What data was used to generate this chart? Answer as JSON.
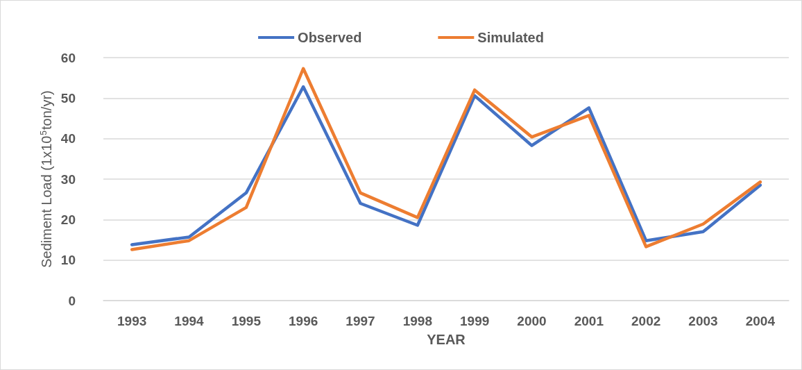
{
  "chart_data": {
    "type": "line",
    "xlabel": "YEAR",
    "ylabel": "Sediment Load (1x10$^{5}$ton/yr)",
    "categories": [
      "1993",
      "1994",
      "1995",
      "1996",
      "1997",
      "1998",
      "1999",
      "2000",
      "2001",
      "2002",
      "2003",
      "2004"
    ],
    "series": [
      {
        "name": "Observed",
        "color": "#4472c4",
        "values": [
          13.8,
          15.7,
          26.6,
          52.8,
          24.0,
          18.6,
          50.6,
          38.3,
          47.6,
          14.8,
          17.0,
          28.5
        ]
      },
      {
        "name": "Simulated",
        "color": "#ed7d31",
        "values": [
          12.6,
          14.8,
          23.0,
          57.3,
          26.6,
          20.5,
          52.0,
          40.4,
          45.7,
          13.3,
          18.9,
          29.3
        ]
      }
    ],
    "ylim": [
      0,
      60
    ],
    "yticks": [
      0,
      10,
      20,
      30,
      40,
      50,
      60
    ],
    "grid": "y",
    "legend": "top",
    "marker": "none",
    "line_style": "solid"
  }
}
